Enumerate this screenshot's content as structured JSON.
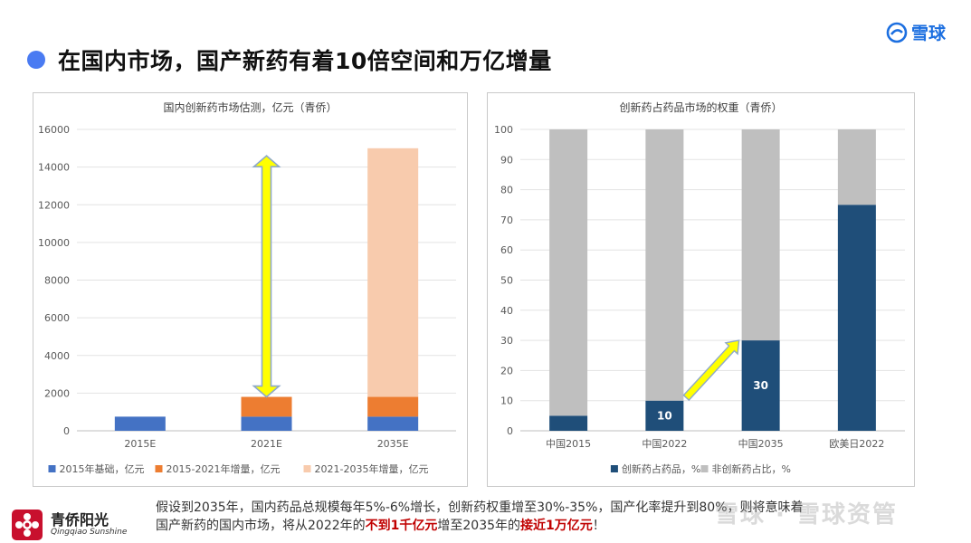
{
  "header": {
    "title": "在国内市场，国产新药有着10倍空间和万亿增量",
    "brand": "雪球"
  },
  "chart_data": [
    {
      "type": "bar",
      "stacked": true,
      "title": "国内创新药市场估测，亿元（青侨）",
      "categories": [
        "2015E",
        "2021E",
        "2035E"
      ],
      "series": [
        {
          "name": "2015年基础，亿元",
          "color": "#4472c4",
          "values": [
            750,
            750,
            750
          ]
        },
        {
          "name": "2015-2021年增量，亿元",
          "color": "#ed7d31",
          "values": [
            0,
            1050,
            1050
          ]
        },
        {
          "name": "2021-2035年增量，亿元",
          "color": "#f8cbad",
          "values": [
            0,
            0,
            13200
          ]
        }
      ],
      "yticks": [
        "0",
        "2000",
        "4000",
        "6000",
        "8000",
        "10000",
        "12000",
        "14000",
        "16000"
      ],
      "ylim": [
        0,
        16000
      ],
      "legend": "bottom",
      "grid": true
    },
    {
      "type": "bar",
      "stacked": true,
      "title": "创新药占药品市场的权重（青侨）",
      "categories": [
        "中国2015",
        "中国2022",
        "中国2035",
        "欧美日2022"
      ],
      "series": [
        {
          "name": "创新药占药品，%",
          "color": "#1f4e79",
          "values": [
            5,
            10,
            30,
            75
          ]
        },
        {
          "name": "非创新药占比，%",
          "color": "#bfbfbf",
          "values": [
            95,
            90,
            70,
            25
          ]
        }
      ],
      "data_labels": [
        "",
        "10",
        "30",
        ""
      ],
      "yticks": [
        "0",
        "10",
        "20",
        "30",
        "40",
        "50",
        "60",
        "70",
        "80",
        "90",
        "100"
      ],
      "ylim": [
        0,
        100
      ],
      "legend": "bottom",
      "grid": true
    }
  ],
  "footer": {
    "logo_cn": "青侨阳光",
    "logo_en": "Qingqiao Sunshine",
    "line1": "假设到2035年，国内药品总规模每年5%-6%增长，创新药权重增至30%-35%，国产化率提升到80%，则将意味着",
    "line2_a": "国产新药的国内市场，将从2022年的",
    "line2_hl1": "不到1千亿元",
    "line2_b": "增至2035年的",
    "line2_hl2": "接近1万亿元",
    "line2_c": "！",
    "watermark": "雪球 · 雪球资管"
  }
}
